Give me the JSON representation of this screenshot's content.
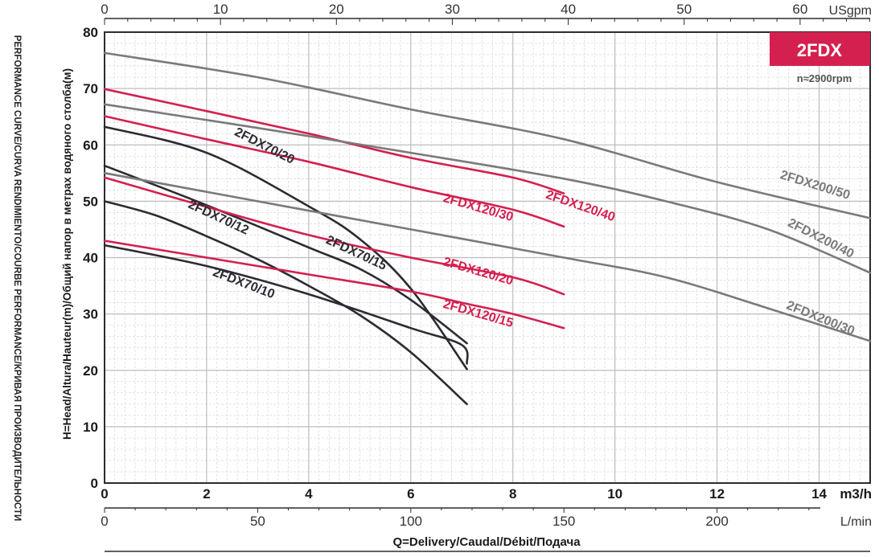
{
  "chart_data": {
    "type": "line",
    "badge": "2FDX",
    "speed": "n≈2900rpm",
    "side_title": "PERFORMANCE CURVE/CURVA RENDIMIENTO/COURBE PERFORMANCE/КРИВАЯ ПРОИЗВОДИТЕЛЬНОСТИ",
    "ylabel": "H=Head/Altura/Hauteur(m)/Общий напор в метрах водяного столба(м)",
    "xlabel": "Q=Delivery/Caudal/Débit/Подача",
    "x_unit_main": "m3/h",
    "x_unit_lmin": "L/min",
    "x_unit_usgpm": "USgpm",
    "xlim": [
      0,
      15
    ],
    "ylim": [
      0,
      80
    ],
    "x_ticks": [
      "0",
      "2",
      "4",
      "6",
      "8",
      "10",
      "12",
      "14"
    ],
    "y_ticks": [
      "0",
      "10",
      "20",
      "30",
      "40",
      "50",
      "60",
      "70",
      "80"
    ],
    "lmin_ticks": [
      "0",
      "50",
      "100",
      "150",
      "200"
    ],
    "usgpm_ticks": [
      "0",
      "10",
      "20",
      "30",
      "40",
      "50",
      "60"
    ],
    "grid": true,
    "colors": {
      "dark": "#2b2b33",
      "red": "#d4204f",
      "gray": "#7a7a7a",
      "badge": "#d4204f"
    },
    "series": [
      {
        "name": "2FDX70/10",
        "color": "dark",
        "points": [
          [
            0,
            42.2
          ],
          [
            2,
            38.5
          ],
          [
            4,
            33.5
          ],
          [
            6,
            27.5
          ],
          [
            7,
            24.5
          ],
          [
            7.1,
            21.2
          ]
        ]
      },
      {
        "name": "2FDX70/12",
        "color": "dark",
        "points": [
          [
            0,
            50
          ],
          [
            1,
            47.5
          ],
          [
            2,
            43.8
          ],
          [
            3,
            39.7
          ],
          [
            4,
            35
          ],
          [
            5,
            29.8
          ],
          [
            6,
            23.2
          ],
          [
            7.1,
            14
          ]
        ]
      },
      {
        "name": "2FDX70/15",
        "color": "dark",
        "points": [
          [
            0,
            56.3
          ],
          [
            2,
            49.3
          ],
          [
            4,
            41.8
          ],
          [
            5,
            38
          ],
          [
            6,
            32.5
          ],
          [
            7.1,
            24.8
          ]
        ]
      },
      {
        "name": "2FDX70/20",
        "color": "dark",
        "points": [
          [
            0,
            63.2
          ],
          [
            2,
            58.6
          ],
          [
            4,
            49.1
          ],
          [
            5,
            43.3
          ],
          [
            6,
            34.5
          ],
          [
            7.1,
            20.2
          ]
        ]
      },
      {
        "name": "2FDX120/15",
        "color": "red",
        "points": [
          [
            0,
            43
          ],
          [
            2,
            40
          ],
          [
            4,
            37
          ],
          [
            6,
            34
          ],
          [
            7,
            32
          ],
          [
            8,
            30
          ],
          [
            9,
            27.5
          ]
        ]
      },
      {
        "name": "2FDX120/20",
        "color": "red",
        "points": [
          [
            0,
            54.2
          ],
          [
            2,
            49
          ],
          [
            4,
            44
          ],
          [
            6,
            40
          ],
          [
            8,
            36.5
          ],
          [
            9,
            33.5
          ]
        ]
      },
      {
        "name": "2FDX120/30",
        "color": "red",
        "points": [
          [
            0,
            65.1
          ],
          [
            2,
            61
          ],
          [
            4,
            57
          ],
          [
            6,
            52.5
          ],
          [
            8,
            48.5
          ],
          [
            9,
            45.5
          ]
        ]
      },
      {
        "name": "2FDX120/40",
        "color": "red",
        "points": [
          [
            0,
            69.9
          ],
          [
            2,
            66
          ],
          [
            4,
            62
          ],
          [
            6,
            57.7
          ],
          [
            8,
            54.2
          ],
          [
            9,
            51.4
          ]
        ]
      },
      {
        "name": "2FDX200/30",
        "color": "gray",
        "points": [
          [
            0,
            55
          ],
          [
            3,
            50
          ],
          [
            6,
            45
          ],
          [
            9,
            40
          ],
          [
            11,
            36.5
          ],
          [
            13,
            31
          ],
          [
            15,
            25.2
          ]
        ]
      },
      {
        "name": "2FDX200/40",
        "color": "gray",
        "points": [
          [
            0,
            67.2
          ],
          [
            3,
            63
          ],
          [
            6,
            58.6
          ],
          [
            9,
            54
          ],
          [
            11,
            50
          ],
          [
            13,
            45
          ],
          [
            15,
            37.3
          ]
        ]
      },
      {
        "name": "2FDX200/50",
        "color": "gray",
        "points": [
          [
            0,
            76.3
          ],
          [
            3,
            72
          ],
          [
            6,
            66.3
          ],
          [
            9,
            61
          ],
          [
            12,
            53.4
          ],
          [
            15,
            47
          ]
        ]
      }
    ]
  }
}
